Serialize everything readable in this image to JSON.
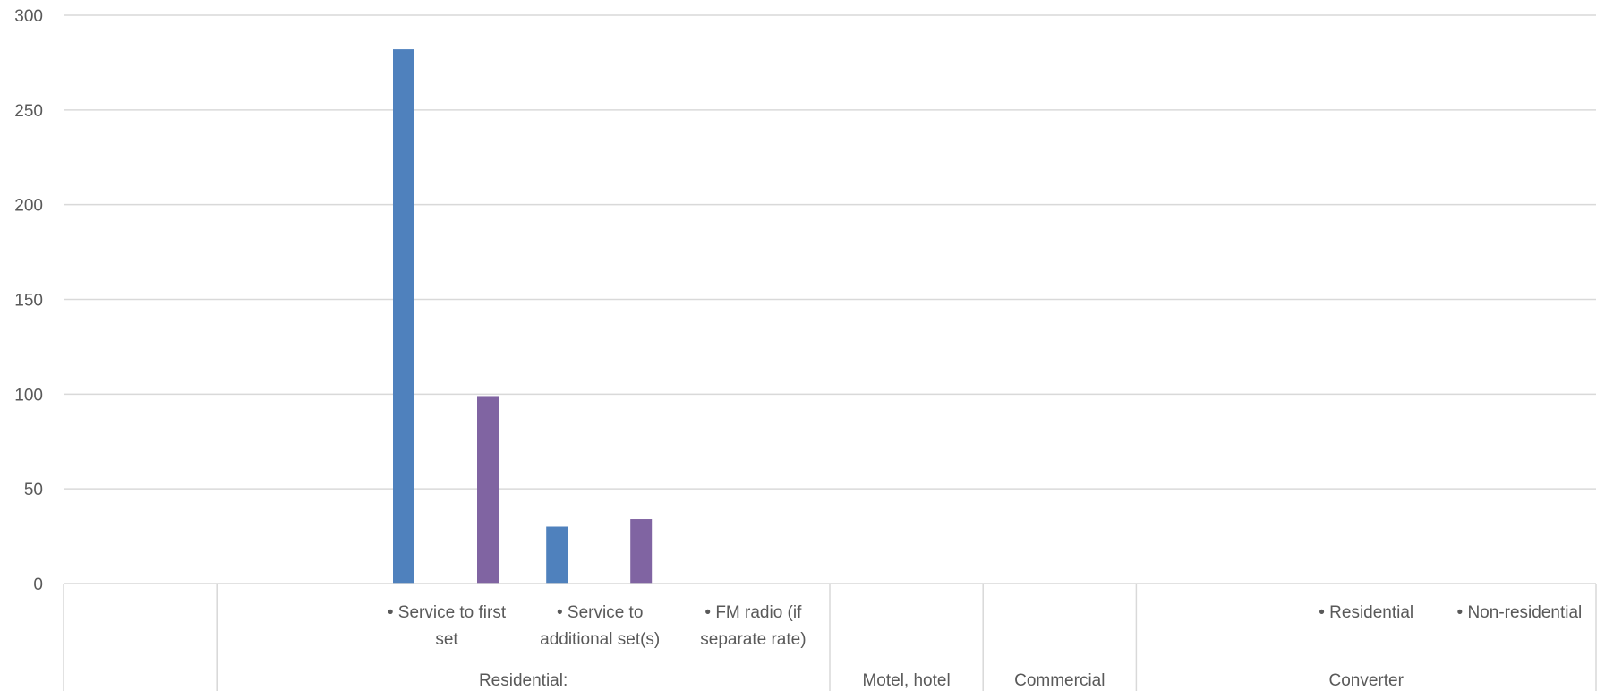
{
  "chart_data": {
    "type": "bar",
    "ylim": [
      0,
      300
    ],
    "yticks": [
      0,
      50,
      100,
      150,
      200,
      250,
      300
    ],
    "grid": true,
    "categories": [
      {
        "label": "",
        "group": ""
      },
      {
        "label": "",
        "group": "Residential:"
      },
      {
        "label": "• Service to first set",
        "group": "Residential:",
        "lines": [
          "• Service to first",
          "set"
        ]
      },
      {
        "label": "• Service to additional set(s)",
        "group": "Residential:",
        "lines": [
          "• Service to",
          "additional set(s)"
        ]
      },
      {
        "label": "• FM radio (if separate rate)",
        "group": "Residential:",
        "lines": [
          "• FM radio (if",
          "separate rate)"
        ]
      },
      {
        "label": "",
        "group": "Motel, hotel"
      },
      {
        "label": "",
        "group": "Commercial"
      },
      {
        "label": "",
        "group": "Converter"
      },
      {
        "label": "• Residential",
        "group": "Converter",
        "lines": [
          "• Residential"
        ]
      },
      {
        "label": "• Non-residential",
        "group": "Converter",
        "lines": [
          "• Non-residential"
        ]
      }
    ],
    "groups": [
      "",
      "Residential:",
      "Motel, hotel",
      "Commercial",
      "Converter"
    ],
    "series": [
      {
        "color": "#4f81bd",
        "values": [
          null,
          null,
          282,
          30,
          null,
          null,
          null,
          null,
          null,
          null
        ]
      },
      {
        "color": "#8064a2",
        "values": [
          null,
          null,
          99,
          34,
          null,
          null,
          null,
          null,
          null,
          null
        ]
      }
    ]
  }
}
